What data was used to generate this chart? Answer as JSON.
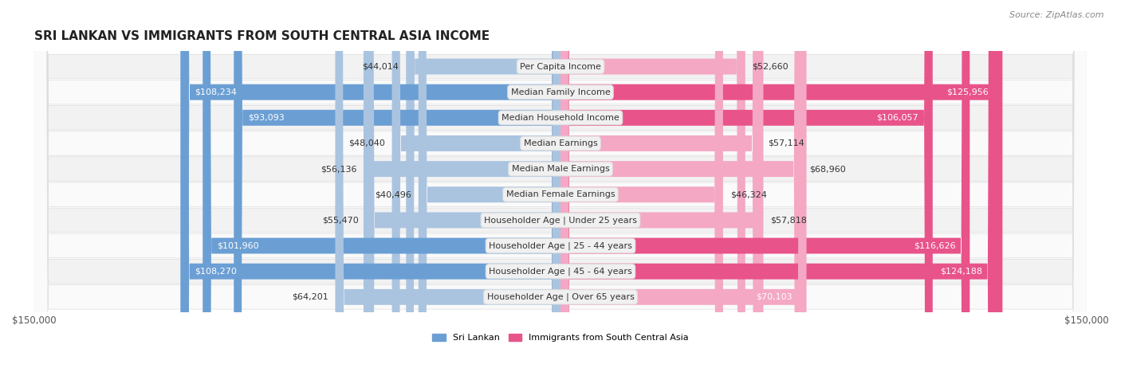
{
  "title": "SRI LANKAN VS IMMIGRANTS FROM SOUTH CENTRAL ASIA INCOME",
  "source": "Source: ZipAtlas.com",
  "categories": [
    "Per Capita Income",
    "Median Family Income",
    "Median Household Income",
    "Median Earnings",
    "Median Male Earnings",
    "Median Female Earnings",
    "Householder Age | Under 25 years",
    "Householder Age | 25 - 44 years",
    "Householder Age | 45 - 64 years",
    "Householder Age | Over 65 years"
  ],
  "sri_lankan": [
    44014,
    108234,
    93093,
    48040,
    56136,
    40496,
    55470,
    101960,
    108270,
    64201
  ],
  "immigrants": [
    52660,
    125956,
    106057,
    57114,
    68960,
    46324,
    57818,
    116626,
    124188,
    70103
  ],
  "sri_lankan_labels": [
    "$44,014",
    "$108,234",
    "$93,093",
    "$48,040",
    "$56,136",
    "$40,496",
    "$55,470",
    "$101,960",
    "$108,270",
    "$64,201"
  ],
  "immigrants_labels": [
    "$52,660",
    "$125,956",
    "$106,057",
    "$57,114",
    "$68,960",
    "$46,324",
    "$57,818",
    "$116,626",
    "$124,188",
    "$70,103"
  ],
  "color_sri_lankan_dark": "#6b9fd4",
  "color_sri_lankan_light": "#aac4e0",
  "color_immigrants_dark": "#e8538a",
  "color_immigrants_light": "#f4a8c4",
  "color_row_bg_0": "#f2f2f2",
  "color_row_bg_1": "#fafafa",
  "x_max": 150000,
  "legend_sri_lankan": "Sri Lankan",
  "legend_immigrants": "Immigrants from South Central Asia",
  "title_fontsize": 11,
  "source_fontsize": 8,
  "bar_fontsize": 8,
  "label_fontsize": 8,
  "axis_fontsize": 8.5,
  "white_text_threshold": 70000,
  "label_bg_color": "#f0f0f0",
  "label_border_color": "#dddddd"
}
